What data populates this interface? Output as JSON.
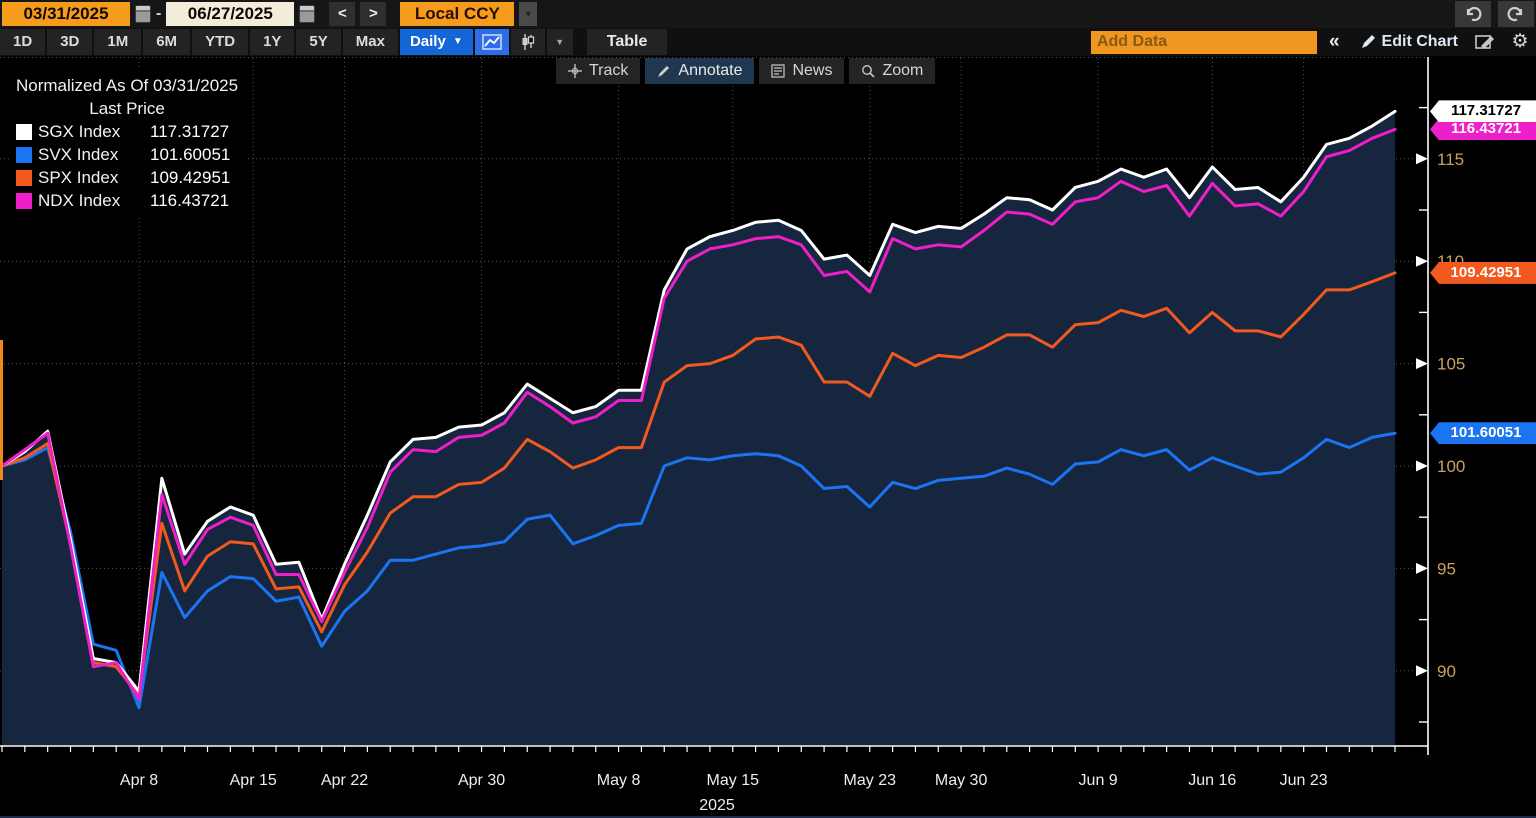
{
  "toolbar": {
    "start_date": "03/31/2025",
    "range_dash": "-",
    "end_date": "06/27/2025",
    "prev": "<",
    "next": ">",
    "currency": "Local CCY",
    "periods": [
      "1D",
      "3D",
      "1M",
      "6M",
      "YTD",
      "1Y",
      "5Y",
      "Max"
    ],
    "frequency": "Daily",
    "table": "Table",
    "add_data_placeholder": "Add Data",
    "collapse": "«",
    "edit_chart": "Edit Chart"
  },
  "icons": {
    "caret_down": "▼",
    "gear": "⚙"
  },
  "chart_tools": {
    "track": "Track",
    "annotate": "Annotate",
    "news": "News",
    "zoom": "Zoom"
  },
  "legend": {
    "title": "Normalized As Of 03/31/2025",
    "subtitle": "Last Price",
    "items": [
      {
        "label": "SGX Index",
        "value": "117.31727",
        "color": "#ffffff"
      },
      {
        "label": "SVX Index",
        "value": "101.60051",
        "color": "#1b74f2"
      },
      {
        "label": "SPX Index",
        "value": "109.42951",
        "color": "#f2591f"
      },
      {
        "label": "NDX Index",
        "value": "116.43721",
        "color": "#ee1fc8"
      }
    ]
  },
  "axis": {
    "label_color": "#c9a15f",
    "tick_color": "#ffffff",
    "y_tick_values": [
      90,
      95,
      100,
      105,
      110,
      115
    ],
    "x_labels": [
      "Apr 8",
      "Apr 15",
      "Apr 22",
      "Apr 30",
      "May 8",
      "May 15",
      "May 23",
      "May 30",
      "Jun 9",
      "Jun 16",
      "Jun 23"
    ],
    "year": "2025",
    "badges": [
      {
        "text": "117.31727",
        "value": 117.31727,
        "bg": "#ffffff",
        "fg": "#000000"
      },
      {
        "text": "116.43721",
        "value": 116.43721,
        "bg": "#ee1fc8",
        "fg": "#ffffff"
      },
      {
        "text": "109.42951",
        "value": 109.42951,
        "bg": "#f2591f",
        "fg": "#ffffff"
      },
      {
        "text": "101.60051",
        "value": 101.60051,
        "bg": "#1b74f2",
        "fg": "#ffffff"
      }
    ]
  },
  "chart_data": {
    "type": "line",
    "title": "Normalized As Of 03/31/2025 - Last Price",
    "normalize_base": 100,
    "ylim": [
      87.5,
      120
    ],
    "grid": true,
    "fill_under_top_series": true,
    "fill_color": "#16263e",
    "x": [
      "03/31",
      "04/01",
      "04/02",
      "04/03",
      "04/04",
      "04/07",
      "04/08",
      "04/09",
      "04/10",
      "04/11",
      "04/14",
      "04/15",
      "04/16",
      "04/17",
      "04/21",
      "04/22",
      "04/23",
      "04/24",
      "04/25",
      "04/28",
      "04/29",
      "04/30",
      "05/01",
      "05/02",
      "05/05",
      "05/06",
      "05/07",
      "05/08",
      "05/09",
      "05/12",
      "05/13",
      "05/14",
      "05/15",
      "05/16",
      "05/19",
      "05/20",
      "05/21",
      "05/22",
      "05/23",
      "05/27",
      "05/28",
      "05/29",
      "05/30",
      "06/02",
      "06/03",
      "06/04",
      "06/05",
      "06/06",
      "06/09",
      "06/10",
      "06/11",
      "06/12",
      "06/13",
      "06/16",
      "06/17",
      "06/18",
      "06/20",
      "06/23",
      "06/24",
      "06/25",
      "06/26",
      "06/27"
    ],
    "x_tick_indices": [
      6,
      11,
      15,
      21,
      27,
      32,
      38,
      42,
      48,
      53,
      57
    ],
    "series": [
      {
        "name": "SGX Index",
        "color": "#ffffff",
        "last": 117.31727,
        "values": [
          100,
          100.7,
          101.7,
          96.4,
          90.6,
          90.4,
          89.0,
          99.4,
          95.7,
          97.3,
          98.0,
          97.6,
          95.2,
          95.3,
          92.5,
          95.2,
          97.6,
          100.2,
          101.3,
          101.4,
          101.9,
          102.0,
          102.6,
          104.0,
          103.3,
          102.6,
          102.9,
          103.7,
          103.7,
          108.6,
          110.6,
          111.2,
          111.5,
          111.9,
          112.0,
          111.5,
          110.1,
          110.3,
          109.3,
          111.8,
          111.4,
          111.7,
          111.6,
          112.3,
          113.1,
          113.0,
          112.5,
          113.6,
          113.9,
          114.5,
          114.1,
          114.5,
          113.1,
          114.6,
          113.5,
          113.6,
          112.9,
          114.1,
          115.7,
          116.0,
          116.6,
          117.31727
        ]
      },
      {
        "name": "SVX Index",
        "color": "#1b74f2",
        "last": 101.60051,
        "values": [
          100,
          100.3,
          100.9,
          96.8,
          91.3,
          91.0,
          88.2,
          94.8,
          92.6,
          93.9,
          94.6,
          94.5,
          93.4,
          93.6,
          91.2,
          92.9,
          93.9,
          95.4,
          95.4,
          95.7,
          96.0,
          96.1,
          96.3,
          97.4,
          97.6,
          96.2,
          96.6,
          97.1,
          97.2,
          100.0,
          100.4,
          100.3,
          100.5,
          100.6,
          100.5,
          100.0,
          98.9,
          99.0,
          98.0,
          99.2,
          98.9,
          99.3,
          99.4,
          99.5,
          99.9,
          99.6,
          99.1,
          100.1,
          100.2,
          100.8,
          100.5,
          100.8,
          99.8,
          100.4,
          100.0,
          99.6,
          99.7,
          100.4,
          101.3,
          100.9,
          101.4,
          101.60051
        ]
      },
      {
        "name": "SPX Index",
        "color": "#f2591f",
        "last": 109.42951,
        "values": [
          100,
          100.4,
          101.1,
          96.2,
          90.4,
          90.2,
          88.8,
          97.2,
          93.9,
          95.6,
          96.3,
          96.2,
          94.0,
          94.1,
          91.9,
          94.2,
          95.8,
          97.7,
          98.5,
          98.5,
          99.1,
          99.2,
          99.9,
          101.3,
          100.7,
          99.9,
          100.3,
          100.9,
          100.9,
          104.1,
          104.9,
          105.0,
          105.4,
          106.2,
          106.3,
          105.9,
          104.1,
          104.1,
          103.4,
          105.5,
          104.9,
          105.4,
          105.3,
          105.8,
          106.4,
          106.4,
          105.8,
          106.9,
          107.0,
          107.6,
          107.3,
          107.7,
          106.5,
          107.5,
          106.6,
          106.6,
          106.3,
          107.4,
          108.6,
          108.6,
          109.0,
          109.42951
        ]
      },
      {
        "name": "NDX Index",
        "color": "#ee1fc8",
        "last": 116.43721,
        "values": [
          100,
          100.8,
          101.6,
          96.1,
          90.2,
          90.4,
          88.6,
          98.6,
          95.2,
          96.9,
          97.5,
          97.1,
          94.7,
          94.7,
          92.4,
          94.8,
          97.0,
          99.7,
          100.8,
          100.7,
          101.4,
          101.5,
          102.1,
          103.6,
          102.9,
          102.1,
          102.4,
          103.2,
          103.2,
          108.2,
          110.0,
          110.6,
          110.8,
          111.1,
          111.2,
          110.8,
          109.3,
          109.5,
          108.5,
          111.1,
          110.6,
          110.8,
          110.7,
          111.5,
          112.4,
          112.3,
          111.8,
          112.9,
          113.1,
          113.9,
          113.4,
          113.7,
          112.2,
          113.8,
          112.7,
          112.8,
          112.2,
          113.4,
          115.1,
          115.4,
          116.0,
          116.43721
        ]
      }
    ]
  }
}
